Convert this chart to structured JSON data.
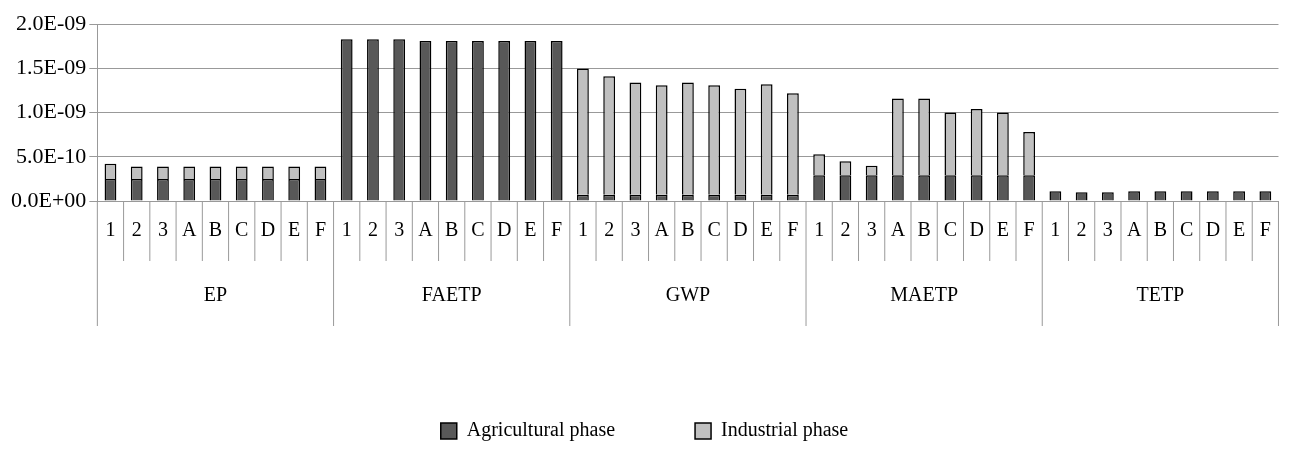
{
  "chart_data": {
    "type": "bar",
    "stacked": true,
    "categories": [
      "1",
      "2",
      "3",
      "A",
      "B",
      "C",
      "D",
      "E",
      "F",
      "1",
      "2",
      "3",
      "A",
      "B",
      "C",
      "D",
      "E",
      "F",
      "1",
      "2",
      "3",
      "A",
      "B",
      "C",
      "D",
      "E",
      "F",
      "1",
      "2",
      "3",
      "A",
      "B",
      "C",
      "D",
      "E",
      "F",
      "1",
      "2",
      "3",
      "A",
      "B",
      "C",
      "D",
      "E",
      "F"
    ],
    "annotations": [
      "EP",
      "FAETP",
      "GWP",
      "MAETP",
      "TETP"
    ],
    "series": [
      {
        "name": "Agricultural phase",
        "color": "#585858",
        "values": [
          2.5e-10,
          2.5e-10,
          2.5e-10,
          2.5e-10,
          2.5e-10,
          2.5e-10,
          2.5e-10,
          2.5e-10,
          2.5e-10,
          1.83e-09,
          1.83e-09,
          1.83e-09,
          1.81e-09,
          1.81e-09,
          1.81e-09,
          1.81e-09,
          1.81e-09,
          1.81e-09,
          7e-11,
          7e-11,
          7e-11,
          7e-11,
          7e-11,
          7e-11,
          7e-11,
          7e-11,
          7e-11,
          2.9e-10,
          2.9e-10,
          2.9e-10,
          2.9e-10,
          2.9e-10,
          2.9e-10,
          2.9e-10,
          2.9e-10,
          2.9e-10,
          1.1e-10,
          1e-10,
          1e-10,
          1.1e-10,
          1.1e-10,
          1.1e-10,
          1.1e-10,
          1.1e-10,
          1.1e-10
        ]
      },
      {
        "name": "Industrial phase",
        "color": "#c0c0c0",
        "values": [
          1.7e-10,
          1.4e-10,
          1.4e-10,
          1.4e-10,
          1.4e-10,
          1.4e-10,
          1.4e-10,
          1.4e-10,
          1.4e-10,
          0,
          0,
          0,
          0,
          0,
          0,
          0,
          0,
          0,
          1.43e-09,
          1.34e-09,
          1.27e-09,
          1.24e-09,
          1.27e-09,
          1.24e-09,
          1.2e-09,
          1.25e-09,
          1.15e-09,
          2.4e-10,
          1.6e-10,
          1.1e-10,
          8.7e-10,
          8.7e-10,
          7.1e-10,
          7.5e-10,
          7.1e-10,
          4.9e-10,
          0,
          0,
          0,
          0,
          0,
          0,
          0,
          0,
          0
        ]
      }
    ],
    "ylim": [
      0,
      2e-09
    ],
    "yticks": [
      {
        "value": 0,
        "label": "0.0E+00"
      },
      {
        "value": 5e-10,
        "label": "5.0E-10"
      },
      {
        "value": 1e-09,
        "label": "1.0E-09"
      },
      {
        "value": 1.5e-09,
        "label": "1.5E-09"
      },
      {
        "value": 2e-09,
        "label": "2.0E-09"
      }
    ],
    "grid": "y",
    "legend": "bottom"
  }
}
